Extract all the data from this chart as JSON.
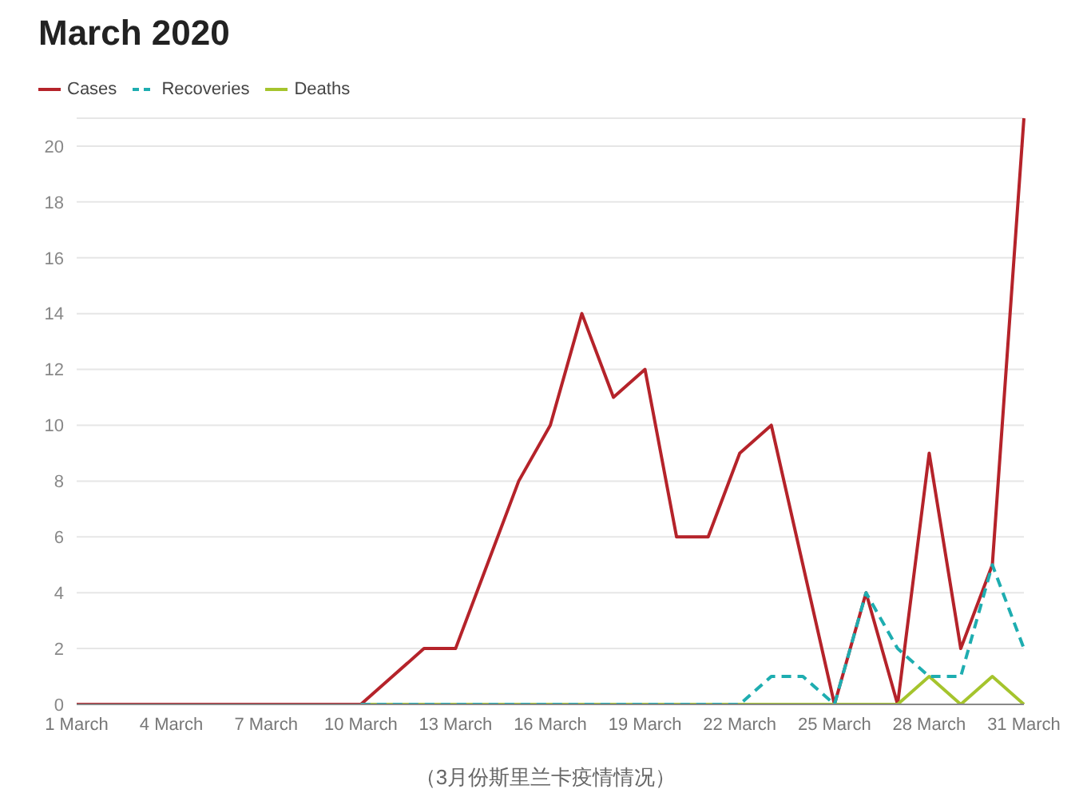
{
  "chart_data": {
    "type": "line",
    "title": "March 2020",
    "annotations": [
      "（3月份斯里兰卡疫情情况）"
    ],
    "categories": [
      "1 March",
      null,
      null,
      "4 March",
      null,
      null,
      "7 March",
      null,
      null,
      "10 March",
      null,
      null,
      "13 March",
      null,
      null,
      "16 March",
      null,
      null,
      "19 March",
      null,
      null,
      "22 March",
      null,
      null,
      "25 March",
      null,
      null,
      "28 March",
      null,
      null,
      "31 March"
    ],
    "series": [
      {
        "name": "Cases",
        "color": "#b5232a",
        "line_style": "solid",
        "values": [
          0,
          0,
          0,
          0,
          0,
          0,
          0,
          0,
          0,
          0,
          1,
          2,
          2,
          5,
          8,
          10,
          14,
          11,
          12,
          6,
          6,
          9,
          10,
          5,
          0,
          4,
          0,
          9,
          2,
          5,
          21
        ]
      },
      {
        "name": "Recoveries",
        "color": "#1eadb0",
        "line_style": "dashed",
        "values": [
          null,
          null,
          null,
          null,
          null,
          null,
          null,
          null,
          null,
          0,
          0,
          0,
          0,
          0,
          0,
          0,
          0,
          0,
          0,
          0,
          0,
          0,
          1,
          1,
          0,
          4,
          2,
          1,
          1,
          5,
          2
        ]
      },
      {
        "name": "Deaths",
        "color": "#a5c42d",
        "line_style": "solid",
        "values": [
          null,
          null,
          null,
          null,
          null,
          null,
          null,
          null,
          null,
          0,
          0,
          0,
          0,
          0,
          0,
          0,
          0,
          0,
          0,
          0,
          0,
          0,
          0,
          0,
          0,
          0,
          0,
          1,
          0,
          1,
          0
        ]
      }
    ],
    "ylim": [
      0,
      21
    ],
    "yticks": [
      0,
      2,
      4,
      6,
      8,
      10,
      12,
      14,
      16,
      18,
      20
    ],
    "grid": "y",
    "legend": "top left",
    "marker": "none"
  }
}
